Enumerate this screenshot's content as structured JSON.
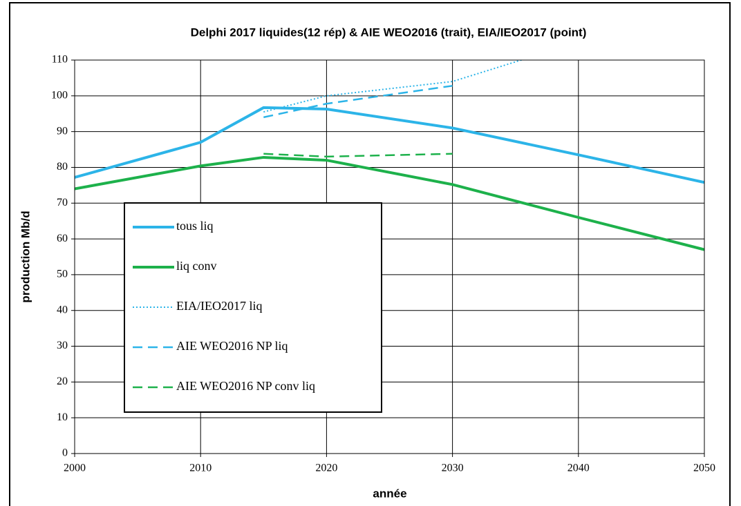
{
  "chart_data": {
    "type": "line",
    "title": "Delphi 2017 liquides(12 rép) & AIE WEO2016 (trait), EIA/IEO2017 (point)",
    "x_label": "année",
    "y_label": "production Mb/d",
    "xlim": [
      2000,
      2050
    ],
    "xticks": [
      2000,
      2010,
      2020,
      2030,
      2040,
      2050
    ],
    "ylim": [
      0,
      110
    ],
    "yticks": [
      0,
      10,
      20,
      30,
      40,
      50,
      60,
      70,
      80,
      90,
      100,
      110
    ],
    "grid": true,
    "legend": "left",
    "series": [
      {
        "name": "tous liq",
        "color": "#2cb4e8",
        "style": "solid",
        "x": [
          2000,
          2010,
          2015,
          2020,
          2030,
          2040,
          2050
        ],
        "values": [
          77.2,
          87,
          96.7,
          96.3,
          91,
          83.5,
          75.8
        ]
      },
      {
        "name": "liq conv",
        "color": "#1db14b",
        "style": "solid",
        "x": [
          2000,
          2010,
          2015,
          2020,
          2030,
          2040,
          2050
        ],
        "values": [
          74,
          80.4,
          82.8,
          82,
          75.2,
          66,
          57
        ]
      },
      {
        "name": "EIA/IEO2017 liq",
        "color": "#2cb4e8",
        "style": "dotted",
        "x": [
          2015,
          2020,
          2030,
          2040
        ],
        "values": [
          95.5,
          100,
          104,
          115
        ]
      },
      {
        "name": "AIE WEO2016 NP liq",
        "color": "#2cb4e8",
        "style": "dashed",
        "x": [
          2015,
          2020,
          2030
        ],
        "values": [
          94,
          97.8,
          102.8
        ]
      },
      {
        "name": "AIE WEO2016 NP conv liq",
        "color": "#1db14b",
        "style": "dashed",
        "x": [
          2015,
          2020,
          2030
        ],
        "values": [
          83.8,
          83,
          83.8
        ]
      }
    ]
  }
}
